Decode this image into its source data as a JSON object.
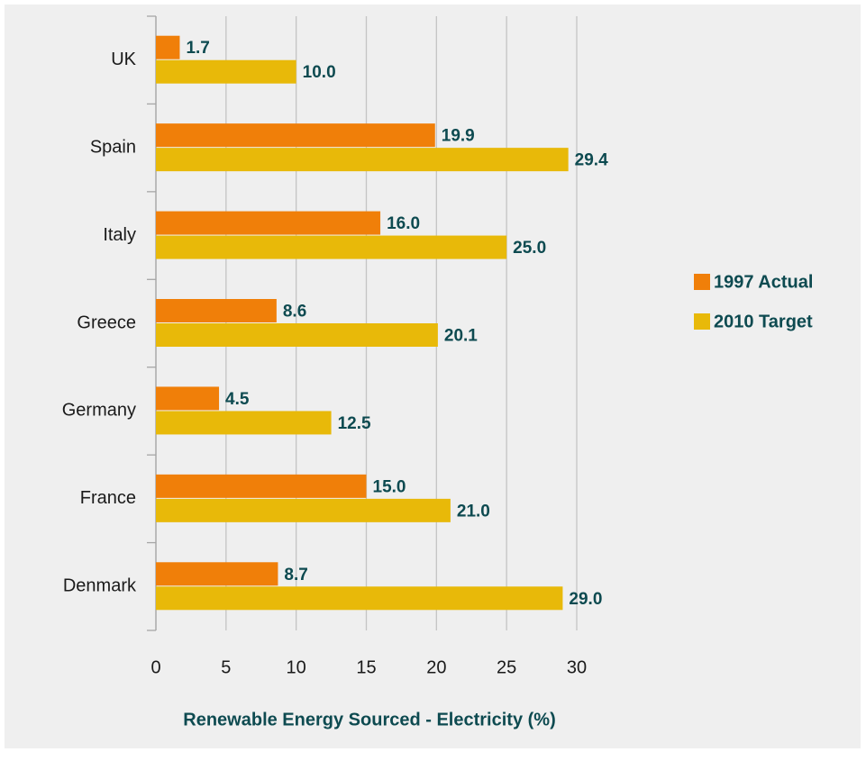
{
  "chart_data": {
    "type": "hbar",
    "x_label": "Renewable Energy Sourced - Electricity (%)",
    "categories": [
      "UK",
      "Spain",
      "Italy",
      "Greece",
      "Germany",
      "France",
      "Denmark"
    ],
    "series": [
      {
        "name": "1997 Actual",
        "color": "#f07f09",
        "values": [
          1.7,
          19.9,
          16.0,
          8.6,
          4.5,
          15.0,
          8.7
        ],
        "value_labels": [
          "1.7",
          "19.9",
          "16.0",
          "8.6",
          "4.5",
          "15.0",
          "8.7"
        ]
      },
      {
        "name": "2010 Target",
        "color": "#e8b909",
        "values": [
          10.0,
          29.4,
          25.0,
          20.1,
          12.5,
          21.0,
          29.0
        ],
        "value_labels": [
          "10.0",
          "29.4",
          "25.0",
          "20.1",
          "12.5",
          "21.0",
          "29.0"
        ]
      }
    ],
    "xlim": [
      0,
      30
    ],
    "xticks": [
      0,
      5,
      10,
      15,
      20,
      25,
      30
    ],
    "grid": true,
    "legend": "right"
  }
}
